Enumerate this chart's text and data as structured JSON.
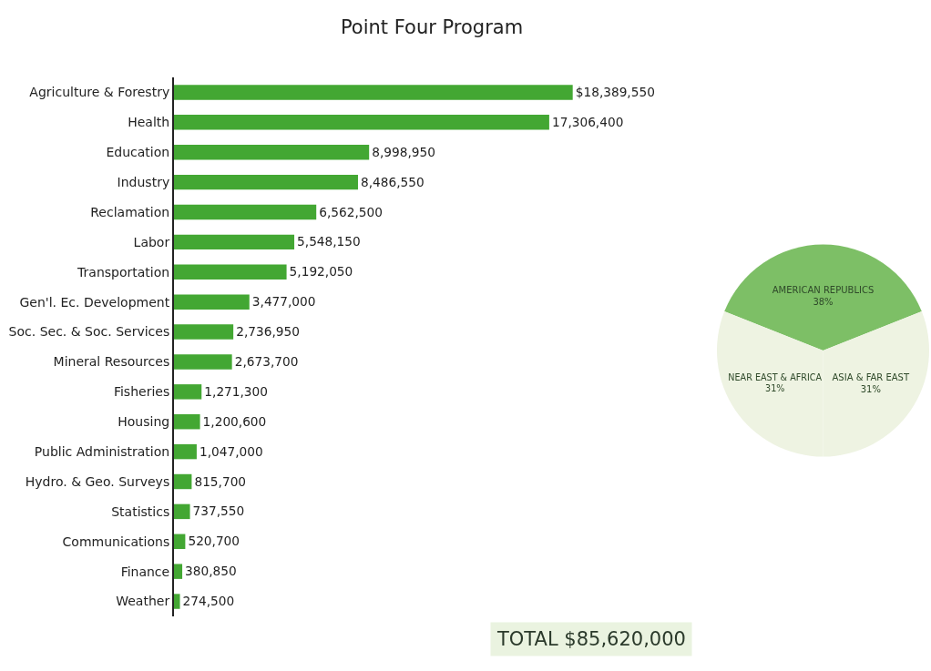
{
  "chart_data": [
    {
      "type": "bar",
      "title": "Point Four Program",
      "orientation": "horizontal",
      "tick_labels": "y",
      "color": "#43a733",
      "categories": [
        "Agriculture & Forestry",
        "Health",
        "Education",
        "Industry",
        "Reclamation",
        "Labor",
        "Transportation",
        "Gen'l. Ec. Development",
        "Soc. Sec. & Soc. Services",
        "Mineral Resources",
        "Fisheries",
        "Housing",
        "Public Administration",
        "Hydro. & Geo. Surveys",
        "Statistics",
        "Communications",
        "Finance",
        "Weather"
      ],
      "values": [
        18389550,
        17306400,
        8998950,
        8486550,
        6562500,
        5548150,
        5192050,
        3477000,
        2736950,
        2673700,
        1271300,
        1200600,
        1047000,
        815700,
        737550,
        520700,
        380850,
        274500
      ],
      "value_labels": [
        "$18,389,550",
        "17,306,400",
        "8,998,950",
        "8,486,550",
        "6,562,500",
        "5,548,150",
        "5,192,050",
        "3,477,000",
        "2,736,950",
        "2,673,700",
        "1,271,300",
        "1,200,600",
        "1,047,000",
        "815,700",
        "737,550",
        "520,700",
        "380,850",
        "274,500"
      ],
      "annotations": [
        "TOTAL $85,620,000"
      ]
    },
    {
      "type": "pie",
      "categories": [
        "AMERICAN REPUBLICS",
        "ASIA & FAR EAST",
        "NEAR EAST & AFRICA"
      ],
      "values": [
        38,
        31,
        31
      ],
      "value_labels": [
        "38%",
        "31%",
        "31%"
      ],
      "colors": [
        "#7dbf66",
        "#eef3e2",
        "#eef3e2"
      ]
    }
  ]
}
